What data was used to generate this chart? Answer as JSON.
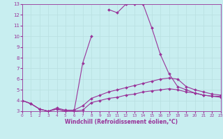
{
  "x": [
    0,
    1,
    2,
    3,
    4,
    5,
    6,
    7,
    8,
    9,
    10,
    11,
    12,
    13,
    14,
    15,
    16,
    17,
    18,
    19,
    20,
    21,
    22,
    23
  ],
  "line_peak": [
    4.0,
    3.7,
    3.2,
    3.0,
    3.2,
    3.0,
    3.0,
    7.5,
    10.0,
    null,
    12.5,
    12.2,
    13.0,
    13.0,
    13.0,
    10.8,
    8.3,
    6.5,
    null,
    null,
    null,
    null,
    null,
    null
  ],
  "line_main": [
    4.0,
    3.7,
    3.2,
    3.0,
    3.2,
    3.0,
    3.0,
    7.5,
    10.0,
    null,
    12.5,
    12.2,
    13.0,
    13.0,
    13.0,
    10.8,
    8.3,
    6.5,
    5.3,
    5.0,
    4.7,
    4.5,
    4.4,
    4.4
  ],
  "line_mid": [
    4.0,
    3.7,
    3.2,
    3.0,
    3.3,
    3.1,
    3.1,
    3.5,
    4.2,
    4.5,
    4.8,
    5.0,
    5.2,
    5.4,
    5.6,
    5.8,
    6.0,
    6.1,
    6.0,
    5.3,
    5.0,
    4.8,
    4.6,
    4.5
  ],
  "line_low": [
    4.0,
    3.7,
    3.2,
    3.0,
    3.2,
    3.0,
    3.0,
    3.1,
    3.8,
    4.0,
    4.2,
    4.3,
    4.5,
    4.6,
    4.8,
    4.9,
    5.0,
    5.1,
    5.0,
    4.8,
    4.7,
    4.5,
    4.4,
    4.3
  ],
  "ylim": [
    3,
    13
  ],
  "xlim": [
    0,
    23
  ],
  "yticks": [
    3,
    4,
    5,
    6,
    7,
    8,
    9,
    10,
    11,
    12,
    13
  ],
  "xticks": [
    0,
    1,
    2,
    3,
    4,
    5,
    6,
    7,
    8,
    9,
    10,
    11,
    12,
    13,
    14,
    15,
    16,
    17,
    18,
    19,
    20,
    21,
    22,
    23
  ],
  "xlabel": "Windchill (Refroidissement éolien,°C)",
  "line_color": "#993399",
  "bg_color": "#c8eef0",
  "grid_color": "#b8dfe0",
  "markersize": 2.0,
  "linewidth": 0.8,
  "xlabel_fontsize": 5.5,
  "tick_fontsize_x": 4.2,
  "tick_fontsize_y": 5.0
}
